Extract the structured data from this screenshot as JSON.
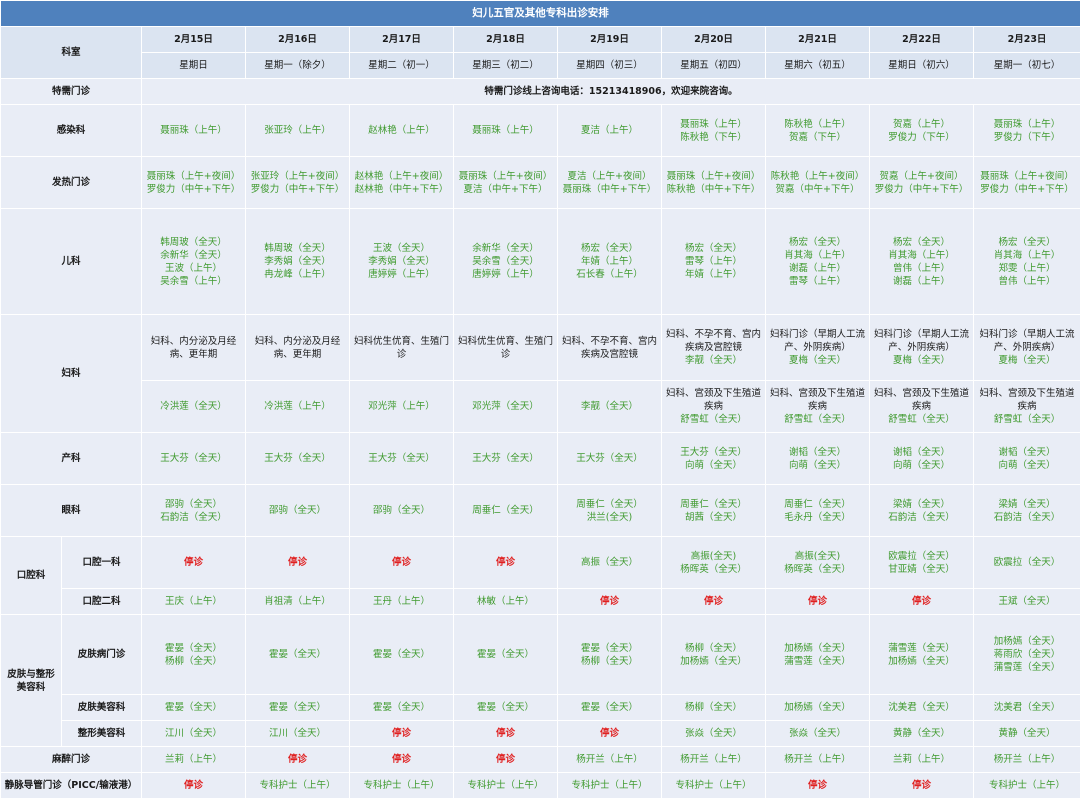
{
  "title": "妇儿五官及其他专科出诊安排",
  "header": {
    "dept_label": "科室",
    "dates": [
      "2月15日",
      "2月16日",
      "2月17日",
      "2月18日",
      "2月19日",
      "2月20日",
      "2月21日",
      "2月22日",
      "2月23日"
    ],
    "weekdays": [
      "星期日",
      "星期一（除夕）",
      "星期二（初一）",
      "星期三（初二）",
      "星期四（初三）",
      "星期五（初四）",
      "星期六（初五）",
      "星期日（初六）",
      "星期一（初七）"
    ]
  },
  "special": {
    "label": "特需门诊",
    "text": "特需门诊线上咨询电话：15213418906，欢迎来院咨询。"
  },
  "rows": [
    {
      "dept": "感染科",
      "h": 52,
      "cells": [
        [
          "聂丽珠（上午）"
        ],
        [
          "张亚玲（上午）"
        ],
        [
          "赵林艳（上午）"
        ],
        [
          "聂丽珠（上午）"
        ],
        [
          "夏洁（上午）"
        ],
        [
          "聂丽珠（上午）",
          "陈秋艳（下午）"
        ],
        [
          "陈秋艳（上午）",
          "贺嘉（下午）"
        ],
        [
          "贺嘉（上午）",
          "罗俊力（下午）"
        ],
        [
          "聂丽珠（上午）",
          "罗俊力（下午）"
        ]
      ]
    },
    {
      "dept": "发热门诊",
      "h": 52,
      "cells": [
        [
          "聂丽珠（上午+夜间）",
          "罗俊力（中午+下午）"
        ],
        [
          "张亚玲（上午+夜间）",
          "罗俊力（中午+下午）"
        ],
        [
          "赵林艳（上午+夜间）",
          "赵林艳（中午+下午）"
        ],
        [
          "聂丽珠（上午+夜间）",
          "夏洁（中午+下午）"
        ],
        [
          "夏洁（上午+夜间）",
          "聂丽珠（中午+下午）"
        ],
        [
          "聂丽珠（上午+夜间）",
          "陈秋艳（中午+下午）"
        ],
        [
          "陈秋艳（上午+夜间）",
          "贺嘉（中午+下午）"
        ],
        [
          "贺嘉（上午+夜间）",
          "罗俊力（中午+下午）"
        ],
        [
          "聂丽珠（上午+夜间）",
          "罗俊力（中午+下午）"
        ]
      ]
    },
    {
      "dept": "儿科",
      "h": 106,
      "cells": [
        [
          "韩周玻（全天）",
          "余新华（全天）",
          "王波（上午）",
          "吴余雪（上午）"
        ],
        [
          "韩周玻（全天）",
          "李秀娟（全天）",
          "冉龙峰（上午）"
        ],
        [
          "王波（全天）",
          "李秀娟（全天）",
          "唐婷婷（上午）"
        ],
        [
          "余新华（全天）",
          "吴余雪（全天）",
          "唐婷婷（上午）"
        ],
        [
          "杨宏（全天）",
          "年婧（上午）",
          "石长春（上午）"
        ],
        [
          "杨宏（全天）",
          "雷琴（上午）",
          "年婧（上午）"
        ],
        [
          "杨宏（全天）",
          "肖其海（上午）",
          "谢磊（上午）",
          "雷琴（上午）"
        ],
        [
          "杨宏（全天）",
          "肖其海（上午）",
          "曾伟（上午）",
          "谢磊（上午）"
        ],
        [
          "杨宏（全天）",
          "肖其海（上午）",
          "郑雯（上午）",
          "曾伟（上午）"
        ]
      ]
    }
  ],
  "gyn": {
    "dept": "妇科",
    "top": [
      {
        "desc": "妇科、内分泌及月经病、更年期",
        "doc": ""
      },
      {
        "desc": "妇科、内分泌及月经病、更年期",
        "doc": ""
      },
      {
        "desc": "妇科优生优育、生殖门诊",
        "doc": ""
      },
      {
        "desc": "妇科优生优育、生殖门诊",
        "doc": ""
      },
      {
        "desc": "妇科、不孕不育、宫内疾病及宫腔镜",
        "doc": ""
      },
      {
        "desc": "妇科、不孕不育、宫内疾病及宫腔镜",
        "doc": "李靓（全天）"
      },
      {
        "desc": "妇科门诊（早期人工流产、外阴疾病）",
        "doc": "夏梅（全天）"
      },
      {
        "desc": "妇科门诊（早期人工流产、外阴疾病）",
        "doc": "夏梅（全天）"
      },
      {
        "desc": "妇科门诊（早期人工流产、外阴疾病）",
        "doc": "夏梅（全天）"
      }
    ],
    "bottom": [
      {
        "desc": "",
        "doc": "冷洪莲（全天）"
      },
      {
        "desc": "",
        "doc": "冷洪莲（上午）"
      },
      {
        "desc": "",
        "doc": "邓光萍（上午）"
      },
      {
        "desc": "",
        "doc": "邓光萍（全天）"
      },
      {
        "desc": "",
        "doc": "李靓（全天）"
      },
      {
        "desc": "妇科、宫颈及下生殖道疾病",
        "doc": "舒雪虹（全天）"
      },
      {
        "desc": "妇科、宫颈及下生殖道疾病",
        "doc": "舒雪虹（全天）"
      },
      {
        "desc": "妇科、宫颈及下生殖道疾病",
        "doc": "舒雪虹（全天）"
      },
      {
        "desc": "妇科、宫颈及下生殖道疾病",
        "doc": "舒雪虹（全天）"
      }
    ]
  },
  "rows2": [
    {
      "dept": "产科",
      "h": 52,
      "cells": [
        [
          "王大芬（全天）"
        ],
        [
          "王大芬（全天）"
        ],
        [
          "王大芬（全天）"
        ],
        [
          "王大芬（全天）"
        ],
        [
          "王大芬（全天）"
        ],
        [
          "王大芬（全天）",
          "向萌（全天）"
        ],
        [
          "谢韬（全天）",
          "向萌（全天）"
        ],
        [
          "谢韬（全天）",
          "向萌（全天）"
        ],
        [
          "谢韬（全天）",
          "向萌（全天）"
        ]
      ]
    },
    {
      "dept": "眼科",
      "h": 52,
      "cells": [
        [
          "邵驹（全天）",
          "石韵洁（全天）"
        ],
        [
          "邵驹（全天）"
        ],
        [
          "邵驹（全天）"
        ],
        [
          "周垂仁（全天）"
        ],
        [
          "周垂仁（全天）",
          "洪兰(全天)"
        ],
        [
          "周垂仁（全天）",
          "胡茜（全天）"
        ],
        [
          "周垂仁（全天）",
          "毛永丹（全天）"
        ],
        [
          "梁婧（全天）",
          "石韵洁（全天）"
        ],
        [
          "梁婧（全天）",
          "石韵洁（全天）"
        ]
      ]
    }
  ],
  "oral": {
    "dept": "口腔科",
    "sub": [
      {
        "name": "口腔一科",
        "h": 52,
        "cells": [
          [
            "停诊"
          ],
          [
            "停诊"
          ],
          [
            "停诊"
          ],
          [
            "停诊"
          ],
          [
            "高振（全天）"
          ],
          [
            "高振(全天)",
            "杨晖英（全天）"
          ],
          [
            "高振(全天)",
            "杨晖英（全天）"
          ],
          [
            "欧震拉（全天）",
            "甘亚婧（全天）"
          ],
          [
            "欧震拉（全天）"
          ]
        ]
      },
      {
        "name": "口腔二科",
        "h": 26,
        "cells": [
          [
            "王庆（上午）"
          ],
          [
            "肖祖清（上午）"
          ],
          [
            "王丹（上午）"
          ],
          [
            "林敏（上午）"
          ],
          [
            "停诊"
          ],
          [
            "停诊"
          ],
          [
            "停诊"
          ],
          [
            "停诊"
          ],
          [
            "王斌（全天）"
          ]
        ]
      }
    ]
  },
  "derm": {
    "dept": "皮肤与整形美容科",
    "sub": [
      {
        "name": "皮肤病门诊",
        "h": 80,
        "cells": [
          [
            "霍晏（全天）",
            "杨柳（全天）"
          ],
          [
            "霍晏（全天）"
          ],
          [
            "霍晏（全天）"
          ],
          [
            "霍晏（全天）"
          ],
          [
            "霍晏（全天）",
            "杨柳（全天）"
          ],
          [
            "杨柳（全天）",
            "加杨嫣（全天）"
          ],
          [
            "加杨嫣（全天）",
            "蒲雪莲（全天）"
          ],
          [
            "蒲雪莲（全天）",
            "加杨嫣（全天）"
          ],
          [
            "加杨嫣（全天）",
            "蒋雨欣（全天）",
            "蒲雪莲（全天）"
          ]
        ]
      },
      {
        "name": "皮肤美容科",
        "h": 26,
        "cells": [
          [
            "霍晏（全天）"
          ],
          [
            "霍晏（全天）"
          ],
          [
            "霍晏（全天）"
          ],
          [
            "霍晏（全天）"
          ],
          [
            "霍晏（全天）"
          ],
          [
            "杨柳（全天）"
          ],
          [
            "加杨嫣（全天）"
          ],
          [
            "沈美君（全天）"
          ],
          [
            "沈美君（全天）"
          ]
        ]
      },
      {
        "name": "整形美容科",
        "h": 26,
        "cells": [
          [
            "江川（全天）"
          ],
          [
            "江川（全天）"
          ],
          [
            "停诊"
          ],
          [
            "停诊"
          ],
          [
            "停诊"
          ],
          [
            "张焱（全天）"
          ],
          [
            "张焱（全天）"
          ],
          [
            "黄静（全天）"
          ],
          [
            "黄静（全天）"
          ]
        ]
      }
    ]
  },
  "rows3": [
    {
      "dept": "麻醉门诊",
      "h": 26,
      "cells": [
        [
          "兰莉（上午）"
        ],
        [
          "停诊"
        ],
        [
          "停诊"
        ],
        [
          "停诊"
        ],
        [
          "杨开兰（上午）"
        ],
        [
          "杨开兰（上午）"
        ],
        [
          "杨开兰（上午）"
        ],
        [
          "兰莉（上午）"
        ],
        [
          "杨开兰（上午）"
        ]
      ]
    },
    {
      "dept": "静脉导管门诊（PICC/输液港）",
      "h": 26,
      "cells": [
        [
          "停诊"
        ],
        [
          "专科护士（上午）"
        ],
        [
          "专科护士（上午）"
        ],
        [
          "专科护士（上午）"
        ],
        [
          "专科护士（上午）"
        ],
        [
          "专科护士（上午）"
        ],
        [
          "停诊"
        ],
        [
          "停诊"
        ],
        [
          "专科护士（上午）"
        ]
      ]
    }
  ],
  "colors": {
    "title_bg": "#4f81bd",
    "header_bg": "#dbe4f1",
    "cell_bg": "#e9edf6",
    "doctor": "#3f9a2e",
    "stop": "#e02020"
  }
}
